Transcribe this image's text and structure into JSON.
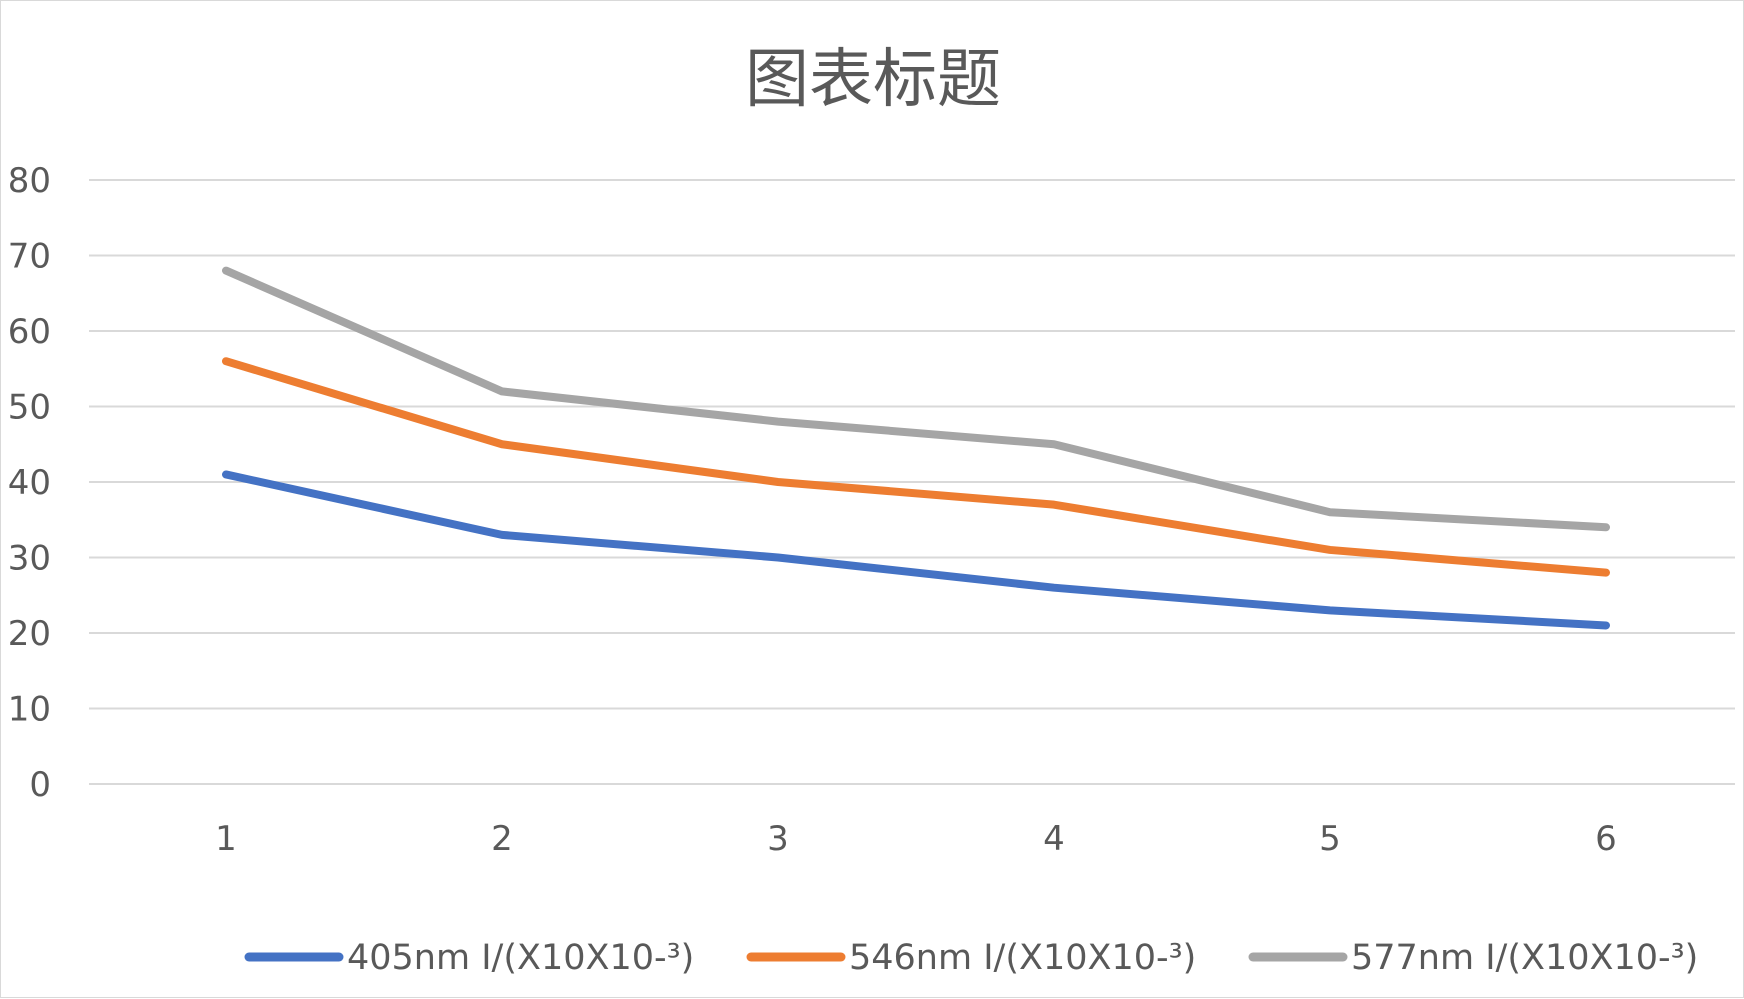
{
  "chart_data": {
    "type": "line",
    "title": "图表标题",
    "xlabel": "",
    "ylabel": "",
    "categories": [
      "1",
      "2",
      "3",
      "4",
      "5",
      "6"
    ],
    "ylim": [
      0,
      80
    ],
    "yticks": [
      0,
      10,
      20,
      30,
      40,
      50,
      60,
      70,
      80
    ],
    "grid": true,
    "legend_position": "bottom",
    "series": [
      {
        "name": "405nm I/(X10X10-³)",
        "color": "#4472C4",
        "values": [
          41,
          33,
          30,
          26,
          23,
          21
        ]
      },
      {
        "name": "546nm I/(X10X10-³)",
        "color": "#ED7D31",
        "values": [
          56,
          45,
          40,
          37,
          31,
          28
        ]
      },
      {
        "name": "577nm I/(X10X10-³)",
        "color": "#A5A5A5",
        "values": [
          68,
          52,
          48,
          45,
          36,
          34
        ]
      }
    ],
    "gridline_color": "#d9d9d9",
    "text_color": "#595959"
  }
}
